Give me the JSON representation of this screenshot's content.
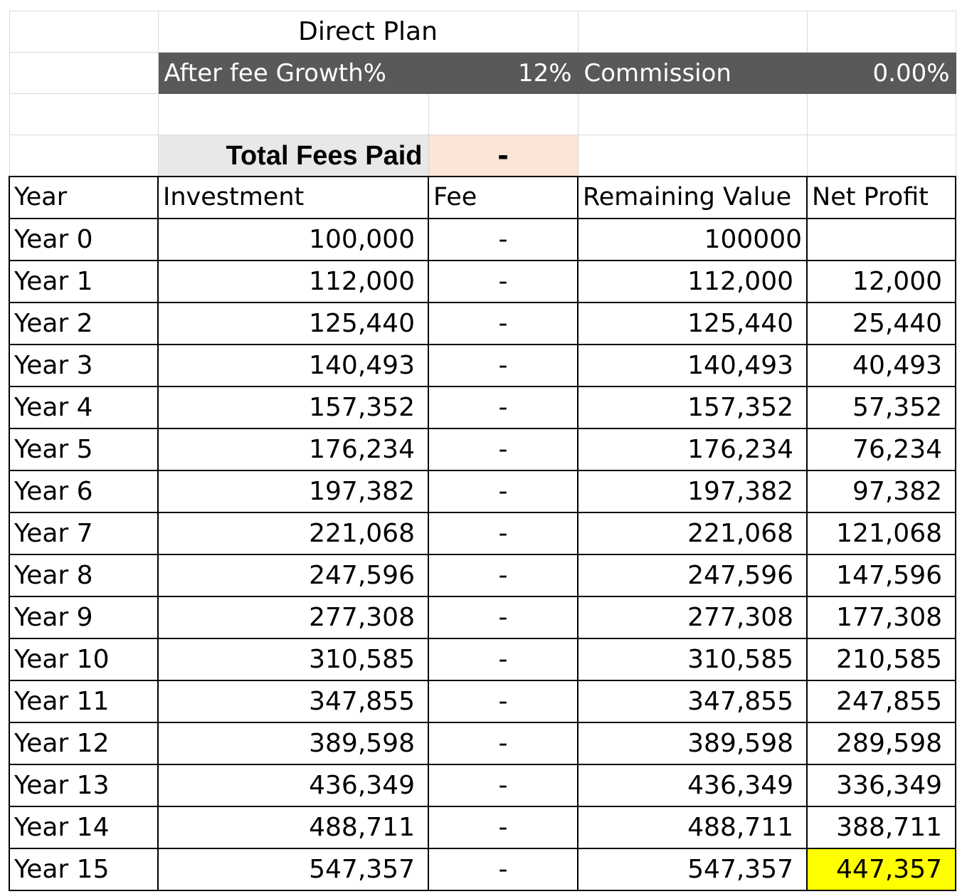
{
  "header": {
    "title": "Direct Plan",
    "growth_label": "After fee Growth%",
    "growth_value": "12%",
    "commission_label": "Commission",
    "commission_value": "0.00%"
  },
  "summary": {
    "total_fees_label": "Total Fees Paid",
    "total_fees_value": "-"
  },
  "table": {
    "columns": [
      "Year",
      "Investment",
      "Fee",
      "Remaining Value",
      "Net Profit"
    ],
    "rows": [
      {
        "year": "Year 0",
        "investment": "100,000",
        "fee": "-",
        "remaining": "100000",
        "profit": ""
      },
      {
        "year": "Year 1",
        "investment": "112,000",
        "fee": "-",
        "remaining": "112,000",
        "profit": "12,000"
      },
      {
        "year": "Year 2",
        "investment": "125,440",
        "fee": "-",
        "remaining": "125,440",
        "profit": "25,440"
      },
      {
        "year": "Year 3",
        "investment": "140,493",
        "fee": "-",
        "remaining": "140,493",
        "profit": "40,493"
      },
      {
        "year": "Year 4",
        "investment": "157,352",
        "fee": "-",
        "remaining": "157,352",
        "profit": "57,352"
      },
      {
        "year": "Year 5",
        "investment": "176,234",
        "fee": "-",
        "remaining": "176,234",
        "profit": "76,234"
      },
      {
        "year": "Year 6",
        "investment": "197,382",
        "fee": "-",
        "remaining": "197,382",
        "profit": "97,382"
      },
      {
        "year": "Year 7",
        "investment": "221,068",
        "fee": "-",
        "remaining": "221,068",
        "profit": "121,068"
      },
      {
        "year": "Year 8",
        "investment": "247,596",
        "fee": "-",
        "remaining": "247,596",
        "profit": "147,596"
      },
      {
        "year": "Year 9",
        "investment": "277,308",
        "fee": "-",
        "remaining": "277,308",
        "profit": "177,308"
      },
      {
        "year": "Year 10",
        "investment": "310,585",
        "fee": "-",
        "remaining": "310,585",
        "profit": "210,585"
      },
      {
        "year": "Year 11",
        "investment": "347,855",
        "fee": "-",
        "remaining": "347,855",
        "profit": "247,855"
      },
      {
        "year": "Year 12",
        "investment": "389,598",
        "fee": "-",
        "remaining": "389,598",
        "profit": "289,598"
      },
      {
        "year": "Year 13",
        "investment": "436,349",
        "fee": "-",
        "remaining": "436,349",
        "profit": "336,349"
      },
      {
        "year": "Year 14",
        "investment": "488,711",
        "fee": "-",
        "remaining": "488,711",
        "profit": "388,711"
      },
      {
        "year": "Year 15",
        "investment": "547,357",
        "fee": "-",
        "remaining": "547,357",
        "profit": "447,357"
      }
    ]
  },
  "colors": {
    "header_band": "#595959",
    "total_label_bg": "#e8e8e8",
    "total_value_bg": "#fce4d6",
    "highlight": "#ffff00"
  }
}
